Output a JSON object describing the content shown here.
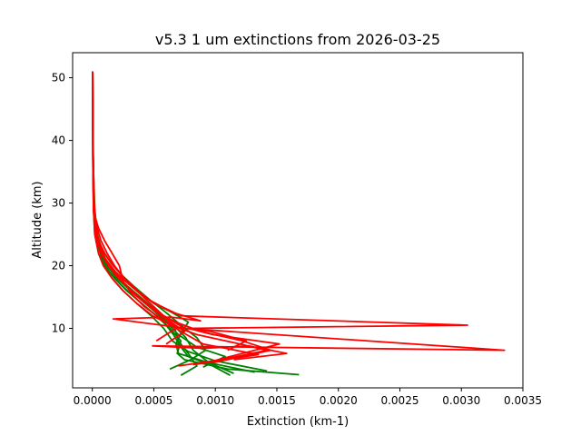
{
  "chart_data": {
    "type": "line",
    "title": "v5.3 1 um extinctions from 2026-03-25",
    "xlabel": "Extinction (km-1)",
    "ylabel": "Altitude (km)",
    "xlim": [
      -0.00016,
      0.0035
    ],
    "ylim": [
      0.5,
      54
    ],
    "x_ticks": [
      0,
      0.0005,
      0.001,
      0.0015,
      0.002,
      0.0025,
      0.003,
      0.0035
    ],
    "x_tick_labels": [
      "0.0000",
      "0.0005",
      "0.0010",
      "0.0015",
      "0.0020",
      "0.0025",
      "0.0030",
      "0.0035"
    ],
    "y_ticks": [
      10,
      20,
      30,
      40,
      50
    ],
    "y_tick_labels": [
      "10",
      "20",
      "30",
      "40",
      "50"
    ],
    "grid": false,
    "legend": "none",
    "colors": {
      "green": "#008000",
      "red": "#ff0000",
      "axes": "#000000"
    },
    "series": [
      {
        "color": "green",
        "x": [
          0.00112,
          0.00098,
          0.00078,
          0.00072,
          0.00066,
          0.00058,
          0.00046,
          0.00034,
          0.00023,
          0.00014,
          8e-05,
          4e-05,
          2e-05,
          1e-05,
          5e-06,
          3e-06
        ],
        "y": [
          2.5,
          4,
          5.5,
          7,
          9,
          11,
          13,
          15,
          17,
          19,
          21,
          24,
          27,
          32,
          40,
          51
        ]
      },
      {
        "color": "green",
        "x": [
          0.00168,
          0.0011,
          0.00075,
          0.00069,
          0.00072,
          0.00063,
          0.00052,
          0.0004,
          0.00028,
          0.00018,
          0.0001,
          5e-05,
          2e-05,
          1e-05,
          5e-06,
          3e-06
        ],
        "y": [
          2.6,
          3.5,
          5,
          6,
          8,
          10,
          12,
          14,
          16,
          18,
          20,
          23,
          27,
          32,
          40,
          51
        ]
      },
      {
        "color": "green",
        "x": [
          0.00072,
          0.00085,
          0.00078,
          0.0007,
          0.00067,
          0.00055,
          0.00043,
          0.00031,
          0.0002,
          0.00012,
          7e-05,
          3e-05,
          1.5e-05,
          8e-06,
          4e-06,
          2e-06
        ],
        "y": [
          2.5,
          4,
          6,
          8,
          10,
          12,
          14,
          16,
          18,
          20,
          22,
          25,
          28,
          33,
          42,
          51
        ]
      },
      {
        "color": "green",
        "x": [
          0.00063,
          0.0008,
          0.00092,
          0.00085,
          0.00072,
          0.0006,
          0.00047,
          0.00035,
          0.00024,
          0.00015,
          8e-05,
          4e-05,
          2e-05,
          1e-05,
          5e-06,
          2e-06
        ],
        "y": [
          3.5,
          5,
          6.5,
          8.5,
          10.5,
          12.5,
          14.5,
          16.5,
          18.5,
          20.5,
          22.5,
          25,
          28,
          33,
          42,
          51
        ]
      },
      {
        "color": "green",
        "x": [
          0.00132,
          0.00095,
          0.0007,
          0.00068,
          0.00073,
          0.00078,
          0.00065,
          0.0005,
          0.00036,
          0.00024,
          0.00014,
          8e-05,
          4e-05,
          2e-05,
          8e-06,
          3e-06
        ],
        "y": [
          3,
          4.5,
          6,
          7.5,
          9.5,
          11,
          12.5,
          14,
          16,
          18,
          20,
          22,
          25,
          29,
          36,
          51
        ]
      },
      {
        "color": "green",
        "x": [
          0.00115,
          0.00095,
          0.00082,
          0.00076,
          0.00066,
          0.00054,
          0.00042,
          0.0003,
          0.00019,
          0.00011,
          6e-05,
          3e-05,
          1.5e-05,
          8e-06,
          4e-06,
          2e-06
        ],
        "y": [
          2.8,
          4.5,
          6.5,
          8.5,
          10.5,
          12.5,
          14.5,
          16.5,
          18.5,
          20.5,
          22.5,
          25,
          28,
          33,
          42,
          51
        ]
      },
      {
        "color": "green",
        "x": [
          0.0009,
          0.00108,
          0.00085,
          0.0007,
          0.0006,
          0.00049,
          0.00037,
          0.00026,
          0.00016,
          9e-05,
          5e-05,
          2e-05,
          1e-05,
          5e-06,
          2e-06
        ],
        "y": [
          3.8,
          5.5,
          7,
          9,
          11,
          13,
          15,
          17,
          19,
          21,
          23,
          26,
          30,
          38,
          51
        ]
      },
      {
        "color": "green",
        "x": [
          0.00142,
          0.001,
          0.00078,
          0.00065,
          0.00058,
          0.00048,
          0.00036,
          0.00025,
          0.00016,
          9e-05,
          5e-05,
          2e-05,
          1e-05,
          5e-06,
          2e-06
        ],
        "y": [
          3.2,
          4.8,
          6.3,
          8,
          10,
          12,
          14,
          16,
          18,
          20,
          22,
          25,
          29,
          37,
          51
        ]
      },
      {
        "color": "red",
        "x": [
          0.00093,
          0.00112,
          0.00152,
          0.00098,
          0.00078,
          0.00305,
          0.00072,
          0.00056,
          0.00042,
          0.0003,
          0.00019,
          0.00011,
          6e-05,
          3e-05,
          1.5e-05,
          7e-06,
          3e-06
        ],
        "y": [
          4.5,
          5.5,
          7.5,
          9,
          10,
          10.5,
          12,
          13.5,
          15,
          17,
          19,
          21,
          23,
          26,
          30,
          38,
          51
        ]
      },
      {
        "color": "red",
        "x": [
          0.00115,
          0.00158,
          0.00127,
          0.0009,
          0.00049,
          0.00335,
          0.00075,
          0.00058,
          0.00044,
          0.00032,
          0.00021,
          0.00013,
          7e-05,
          3e-05,
          1.5e-05,
          7e-06,
          3e-06
        ],
        "y": [
          5,
          6,
          7.2,
          6.8,
          7.2,
          6.5,
          10,
          12,
          14,
          16,
          18,
          20,
          22,
          25,
          30,
          38,
          51
        ]
      },
      {
        "color": "red",
        "x": [
          0.0011,
          0.00125,
          0.00096,
          0.00017,
          0.00064,
          0.00088,
          0.00066,
          0.0005,
          0.00037,
          0.00026,
          0.00017,
          0.0001,
          5e-05,
          2e-05,
          1e-05,
          5e-06,
          2e-06
        ],
        "y": [
          6.5,
          8,
          9.5,
          11.5,
          11.8,
          11.2,
          12.5,
          14,
          16,
          18,
          20,
          22,
          24,
          27,
          31,
          40,
          51
        ]
      },
      {
        "color": "red",
        "x": [
          0.00098,
          0.00145,
          0.00122,
          0.00088,
          0.00068,
          0.00053,
          0.0004,
          0.00029,
          0.0002,
          0.00012,
          7e-05,
          3e-05,
          1.5e-05,
          7e-06,
          3e-06
        ],
        "y": [
          4.5,
          6.5,
          8,
          9.5,
          11,
          12.5,
          14.5,
          16.5,
          18.5,
          20.5,
          22.5,
          25,
          29,
          37,
          51
        ]
      },
      {
        "color": "red",
        "x": [
          0.0007,
          0.00105,
          0.00142,
          0.0012,
          0.00085,
          0.00064,
          0.00049,
          0.00036,
          0.00025,
          0.00016,
          9e-05,
          5e-05,
          2e-05,
          1e-05,
          4e-06,
          2e-06
        ],
        "y": [
          4,
          5,
          6.5,
          7.5,
          9,
          10.5,
          12,
          14,
          16,
          18,
          20,
          22,
          25,
          29,
          37,
          51
        ]
      },
      {
        "color": "red",
        "x": [
          0.00082,
          0.00135,
          0.0009,
          0.00072,
          0.00056,
          0.00042,
          0.00032,
          0.00025,
          0.00022,
          0.00016,
          0.0001,
          5e-05,
          2e-05,
          1e-05,
          4e-06,
          2e-06
        ],
        "y": [
          4.2,
          5.8,
          7.5,
          9.5,
          11.5,
          13.5,
          15.5,
          17.5,
          20,
          22,
          24,
          26,
          28,
          31,
          38,
          51
        ]
      },
      {
        "color": "red",
        "x": [
          0.00052,
          0.00068,
          0.00058,
          0.00047,
          0.00036,
          0.00026,
          0.00018,
          0.00012,
          7e-05,
          4e-05,
          2e-05,
          1e-05,
          5e-06,
          2e-06
        ],
        "y": [
          8,
          10,
          12,
          14,
          16,
          18,
          20,
          22,
          24,
          26,
          28,
          31,
          38,
          51
        ]
      },
      {
        "color": "red",
        "x": [
          0.0006,
          0.00075,
          0.0006,
          0.00046,
          0.00034,
          0.00024,
          0.00016,
          9e-05,
          5e-05,
          2e-05,
          1e-05,
          5e-06,
          2e-06
        ],
        "y": [
          7.5,
          9.5,
          11.5,
          13.5,
          15.5,
          17.5,
          19.5,
          21.5,
          23.5,
          26,
          29,
          36,
          51
        ]
      }
    ]
  }
}
